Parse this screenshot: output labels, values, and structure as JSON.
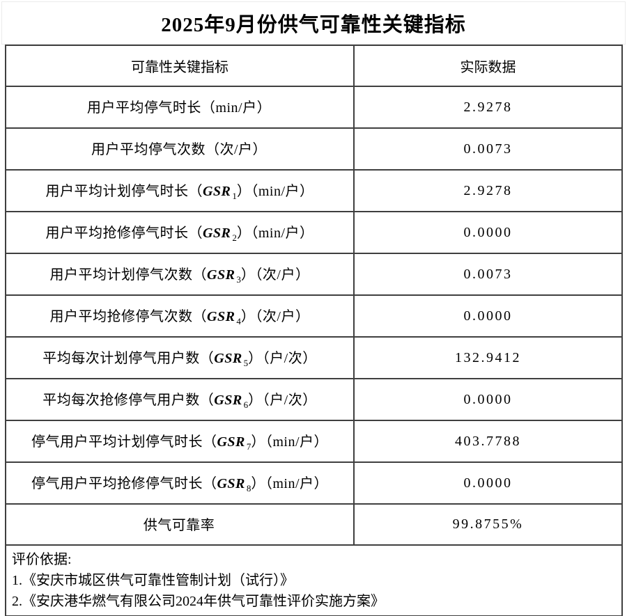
{
  "page_title": "2025年9月份供气可靠性关键指标",
  "table": {
    "columns": [
      "可靠性关键指标",
      "实际数据"
    ],
    "rows": [
      {
        "prefix": "用户平均停气时长（min/户）",
        "gsr": "",
        "sub": "",
        "suffix": "",
        "value": "2.9278"
      },
      {
        "prefix": "用户平均停气次数（次/户）",
        "gsr": "",
        "sub": "",
        "suffix": "",
        "value": "0.0073"
      },
      {
        "prefix": "用户平均计划停气时长（",
        "gsr": "GSR",
        "sub": "1",
        "suffix": "）（min/户）",
        "value": "2.9278"
      },
      {
        "prefix": "用户平均抢修停气时长（",
        "gsr": "GSR",
        "sub": "2",
        "suffix": "）（min/户）",
        "value": "0.0000"
      },
      {
        "prefix": "用户平均计划停气次数（",
        "gsr": "GSR",
        "sub": "3",
        "suffix": "）（次/户）",
        "value": "0.0073"
      },
      {
        "prefix": "用户平均抢修停气次数（",
        "gsr": "GSR",
        "sub": "4",
        "suffix": "）（次/户）",
        "value": "0.0000"
      },
      {
        "prefix": "平均每次计划停气用户数（",
        "gsr": "GSR",
        "sub": "5",
        "suffix": "）（户/次）",
        "value": "132.9412"
      },
      {
        "prefix": "平均每次抢修停气用户数（",
        "gsr": "GSR",
        "sub": "6",
        "suffix": "）（户/次）",
        "value": "0.0000"
      },
      {
        "prefix": "停气用户平均计划停气时长（",
        "gsr": "GSR",
        "sub": "7",
        "suffix": "）（min/户）",
        "value": "403.7788"
      },
      {
        "prefix": "停气用户平均抢修停气时长（",
        "gsr": "GSR",
        "sub": "8",
        "suffix": "）（min/户）",
        "value": "0.0000"
      },
      {
        "prefix": "供气可靠率",
        "gsr": "",
        "sub": "",
        "suffix": "",
        "value": "99.8755%"
      }
    ],
    "footer_lines": [
      "评价依据:",
      "1.《安庆市城区供气可靠性管制计划（试行）》",
      "2.《安庆港华燃气有限公司2024年供气可靠性评价实施方案》"
    ]
  },
  "colors": {
    "border_dark": "#3f3f3f",
    "border_light": "#ebebeb",
    "text": "#000000",
    "background": "#ffffff"
  }
}
